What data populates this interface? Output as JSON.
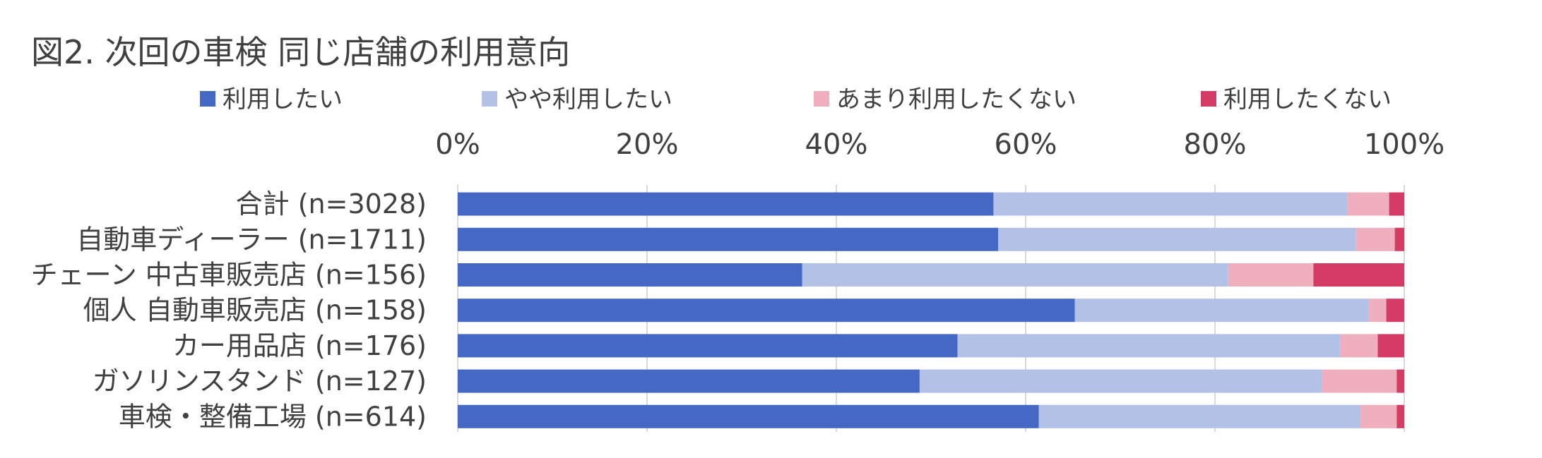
{
  "chart_data": {
    "type": "bar",
    "orientation": "horizontal",
    "stacked": true,
    "title": "図2. 次回の車検 同じ店舗の利用意向",
    "xlim": [
      0,
      100
    ],
    "tick_values": [
      0,
      20,
      40,
      60,
      80,
      100
    ],
    "tick_labels": [
      "0%",
      "20%",
      "40%",
      "60%",
      "80%",
      "100%"
    ],
    "axis_position": "top",
    "grid": true,
    "legend_position": "top",
    "categories": [
      "合計 (n=3028)",
      "自動車ディーラー (n=1711)",
      "チェーン 中古車販売店 (n=156)",
      "個人 自動車販売店 (n=158)",
      "カー用品店 (n=176)",
      "ガソリンスタンド (n=127)",
      "車検・整備工場 (n=614)"
    ],
    "series": [
      {
        "name": "利用したい",
        "color": "#4468C4",
        "values": [
          56.6,
          57.1,
          36.4,
          65.2,
          52.8,
          48.8,
          61.4
        ]
      },
      {
        "name": "やや利用したい",
        "color": "#B4C1E6",
        "values": [
          37.4,
          37.8,
          45.0,
          31.0,
          40.4,
          42.5,
          33.9
        ]
      },
      {
        "name": "あまり利用したくない",
        "color": "#F0AFBF",
        "values": [
          4.4,
          4.1,
          9.0,
          1.9,
          4.0,
          7.9,
          3.9
        ]
      },
      {
        "name": "利用したくない",
        "color": "#D43B65",
        "values": [
          1.6,
          1.0,
          9.6,
          1.9,
          2.8,
          0.8,
          0.8
        ]
      }
    ]
  }
}
